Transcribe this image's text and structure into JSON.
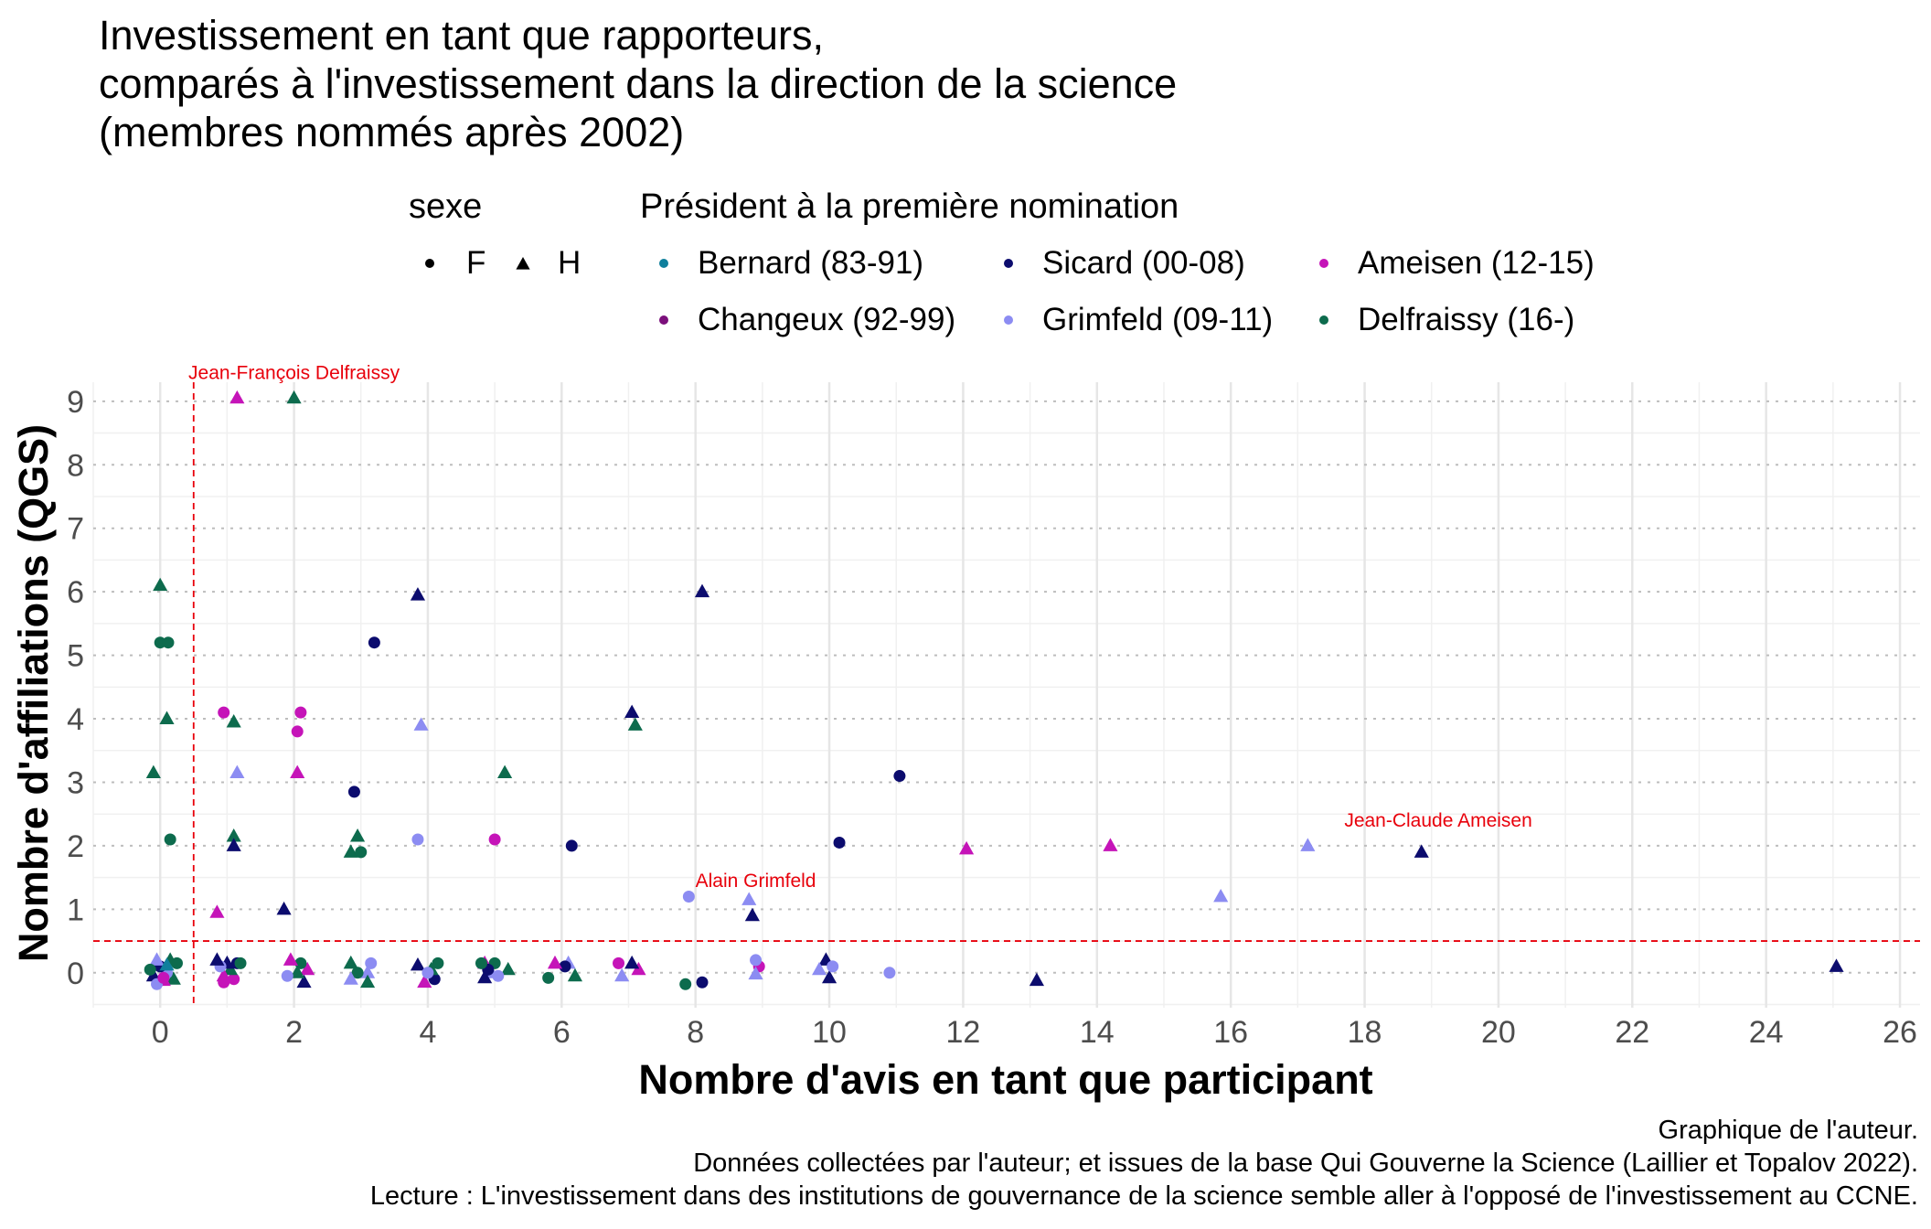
{
  "title_lines": [
    "Investissement en tant que rapporteurs,",
    "comparés à l'investissement dans la direction de la science",
    "(membres nommés après 2002)"
  ],
  "legend": {
    "shape_title": "sexe",
    "shape_items": [
      {
        "label": "F",
        "shape": "circle"
      },
      {
        "label": "H",
        "shape": "triangle"
      }
    ],
    "color_title": "Président à la première nomination",
    "color_items": [
      {
        "label": "Bernard (83-91)",
        "color": "#0f7f9c"
      },
      {
        "label": "Changeux (92-99)",
        "color": "#7b0f7b"
      },
      {
        "label": "Sicard (00-08)",
        "color": "#0c0c6e"
      },
      {
        "label": "Grimfeld (09-11)",
        "color": "#8c8cf2"
      },
      {
        "label": "Ameisen (12-15)",
        "color": "#c514b8"
      },
      {
        "label": "Delfraissy (16-)",
        "color": "#0d6b4d"
      }
    ]
  },
  "captions": [
    "Graphique de l'auteur.",
    "Données collectées par l'auteur; et issues de la base Qui Gouverne la Science (Laillier et Topalov 2022).",
    "Lecture : L'investissement dans des institutions de gouvernance de la science semble aller à l'opposé de l'investissement au CCNE."
  ],
  "chart_data": {
    "type": "scatter",
    "xlabel": "Nombre d'avis en tant que participant",
    "ylabel": "Nombre d'affiliations (QGS)",
    "xlim": [
      -1,
      26.3
    ],
    "ylim": [
      -0.55,
      9.3
    ],
    "x_ticks": [
      0,
      2,
      4,
      6,
      8,
      10,
      12,
      14,
      16,
      18,
      20,
      22,
      24,
      26
    ],
    "y_ticks": [
      0,
      1,
      2,
      3,
      4,
      5,
      6,
      7,
      8,
      9
    ],
    "grid": true,
    "reference_lines": {
      "vertical_x": 0.5,
      "horizontal_y": 0.5,
      "color": "#e8000b",
      "style": "dashed"
    },
    "annotations": [
      {
        "text": "Jean-François Delfraissy",
        "x": 2.0,
        "y": 9.35
      },
      {
        "text": "Alain Grimfeld",
        "x": 8.9,
        "y": 1.35
      },
      {
        "text": "Jean-Claude Ameisen",
        "x": 19.1,
        "y": 2.3
      }
    ],
    "points": [
      {
        "x": 2.0,
        "y": 9.05,
        "shape": "triangle",
        "group": "Delfraissy (16-)"
      },
      {
        "x": 1.15,
        "y": 9.05,
        "shape": "triangle",
        "group": "Ameisen (12-15)"
      },
      {
        "x": 0.0,
        "y": 6.1,
        "shape": "triangle",
        "group": "Delfraissy (16-)"
      },
      {
        "x": 0.0,
        "y": 5.2,
        "shape": "circle",
        "group": "Delfraissy (16-)"
      },
      {
        "x": 0.12,
        "y": 5.2,
        "shape": "circle",
        "group": "Delfraissy (16-)"
      },
      {
        "x": 0.1,
        "y": 4.0,
        "shape": "triangle",
        "group": "Delfraissy (16-)"
      },
      {
        "x": -0.1,
        "y": 3.15,
        "shape": "triangle",
        "group": "Delfraissy (16-)"
      },
      {
        "x": 0.15,
        "y": 2.1,
        "shape": "circle",
        "group": "Delfraissy (16-)"
      },
      {
        "x": 0.95,
        "y": 4.1,
        "shape": "circle",
        "group": "Ameisen (12-15)"
      },
      {
        "x": 1.1,
        "y": 3.95,
        "shape": "triangle",
        "group": "Delfraissy (16-)"
      },
      {
        "x": 1.15,
        "y": 3.15,
        "shape": "triangle",
        "group": "Grimfeld (09-11)"
      },
      {
        "x": 1.1,
        "y": 2.15,
        "shape": "triangle",
        "group": "Delfraissy (16-)"
      },
      {
        "x": 1.1,
        "y": 2.0,
        "shape": "triangle",
        "group": "Sicard (00-08)"
      },
      {
        "x": 0.85,
        "y": 0.95,
        "shape": "triangle",
        "group": "Ameisen (12-15)"
      },
      {
        "x": 2.1,
        "y": 4.1,
        "shape": "circle",
        "group": "Ameisen (12-15)"
      },
      {
        "x": 2.05,
        "y": 3.8,
        "shape": "circle",
        "group": "Ameisen (12-15)"
      },
      {
        "x": 2.05,
        "y": 3.15,
        "shape": "triangle",
        "group": "Ameisen (12-15)"
      },
      {
        "x": 1.85,
        "y": 1.0,
        "shape": "triangle",
        "group": "Sicard (00-08)"
      },
      {
        "x": 2.9,
        "y": 2.85,
        "shape": "circle",
        "group": "Sicard (00-08)"
      },
      {
        "x": 2.95,
        "y": 2.15,
        "shape": "triangle",
        "group": "Delfraissy (16-)"
      },
      {
        "x": 2.85,
        "y": 1.9,
        "shape": "triangle",
        "group": "Delfraissy (16-)"
      },
      {
        "x": 3.0,
        "y": 1.9,
        "shape": "circle",
        "group": "Delfraissy (16-)"
      },
      {
        "x": 3.2,
        "y": 5.2,
        "shape": "circle",
        "group": "Sicard (00-08)"
      },
      {
        "x": 3.85,
        "y": 5.95,
        "shape": "triangle",
        "group": "Sicard (00-08)"
      },
      {
        "x": 3.9,
        "y": 3.9,
        "shape": "triangle",
        "group": "Grimfeld (09-11)"
      },
      {
        "x": 3.85,
        "y": 2.1,
        "shape": "circle",
        "group": "Grimfeld (09-11)"
      },
      {
        "x": 5.0,
        "y": 2.1,
        "shape": "circle",
        "group": "Ameisen (12-15)"
      },
      {
        "x": 5.15,
        "y": 3.15,
        "shape": "triangle",
        "group": "Delfraissy (16-)"
      },
      {
        "x": 6.15,
        "y": 2.0,
        "shape": "circle",
        "group": "Sicard (00-08)"
      },
      {
        "x": 7.05,
        "y": 4.1,
        "shape": "triangle",
        "group": "Sicard (00-08)"
      },
      {
        "x": 7.1,
        "y": 3.9,
        "shape": "triangle",
        "group": "Delfraissy (16-)"
      },
      {
        "x": 8.1,
        "y": 6.0,
        "shape": "triangle",
        "group": "Sicard (00-08)"
      },
      {
        "x": 7.9,
        "y": 1.2,
        "shape": "circle",
        "group": "Grimfeld (09-11)"
      },
      {
        "x": 8.8,
        "y": 1.15,
        "shape": "triangle",
        "group": "Grimfeld (09-11)"
      },
      {
        "x": 8.85,
        "y": 0.9,
        "shape": "triangle",
        "group": "Sicard (00-08)"
      },
      {
        "x": 10.15,
        "y": 2.05,
        "shape": "circle",
        "group": "Sicard (00-08)"
      },
      {
        "x": 11.05,
        "y": 3.1,
        "shape": "circle",
        "group": "Sicard (00-08)"
      },
      {
        "x": 12.05,
        "y": 1.95,
        "shape": "triangle",
        "group": "Ameisen (12-15)"
      },
      {
        "x": 14.2,
        "y": 2.0,
        "shape": "triangle",
        "group": "Ameisen (12-15)"
      },
      {
        "x": 15.85,
        "y": 1.2,
        "shape": "triangle",
        "group": "Grimfeld (09-11)"
      },
      {
        "x": 17.15,
        "y": 2.0,
        "shape": "triangle",
        "group": "Grimfeld (09-11)"
      },
      {
        "x": 18.85,
        "y": 1.9,
        "shape": "triangle",
        "group": "Sicard (00-08)"
      },
      {
        "x": 25.05,
        "y": 0.1,
        "shape": "triangle",
        "group": "Sicard (00-08)"
      },
      {
        "x": 13.1,
        "y": -0.12,
        "shape": "triangle",
        "group": "Sicard (00-08)"
      },
      {
        "x": 10.9,
        "y": 0.0,
        "shape": "circle",
        "group": "Grimfeld (09-11)"
      },
      {
        "x": 9.95,
        "y": 0.2,
        "shape": "triangle",
        "group": "Sicard (00-08)"
      },
      {
        "x": 10.0,
        "y": -0.08,
        "shape": "triangle",
        "group": "Sicard (00-08)"
      },
      {
        "x": 10.05,
        "y": 0.1,
        "shape": "circle",
        "group": "Grimfeld (09-11)"
      },
      {
        "x": 9.85,
        "y": 0.05,
        "shape": "triangle",
        "group": "Grimfeld (09-11)"
      },
      {
        "x": 8.95,
        "y": 0.1,
        "shape": "circle",
        "group": "Ameisen (12-15)"
      },
      {
        "x": 8.9,
        "y": -0.02,
        "shape": "triangle",
        "group": "Grimfeld (09-11)"
      },
      {
        "x": 8.9,
        "y": 0.2,
        "shape": "circle",
        "group": "Grimfeld (09-11)"
      },
      {
        "x": 8.1,
        "y": -0.15,
        "shape": "circle",
        "group": "Sicard (00-08)"
      },
      {
        "x": 7.85,
        "y": -0.18,
        "shape": "circle",
        "group": "Delfraissy (16-)"
      },
      {
        "x": 7.15,
        "y": 0.05,
        "shape": "triangle",
        "group": "Ameisen (12-15)"
      },
      {
        "x": 7.05,
        "y": 0.15,
        "shape": "triangle",
        "group": "Sicard (00-08)"
      },
      {
        "x": 6.9,
        "y": -0.05,
        "shape": "triangle",
        "group": "Grimfeld (09-11)"
      },
      {
        "x": 6.85,
        "y": 0.15,
        "shape": "circle",
        "group": "Ameisen (12-15)"
      },
      {
        "x": 6.1,
        "y": 0.15,
        "shape": "triangle",
        "group": "Grimfeld (09-11)"
      },
      {
        "x": 6.2,
        "y": -0.05,
        "shape": "triangle",
        "group": "Delfraissy (16-)"
      },
      {
        "x": 6.05,
        "y": 0.1,
        "shape": "circle",
        "group": "Sicard (00-08)"
      },
      {
        "x": 5.9,
        "y": 0.15,
        "shape": "triangle",
        "group": "Ameisen (12-15)"
      },
      {
        "x": 5.8,
        "y": -0.08,
        "shape": "circle",
        "group": "Delfraissy (16-)"
      },
      {
        "x": 5.2,
        "y": 0.05,
        "shape": "triangle",
        "group": "Delfraissy (16-)"
      },
      {
        "x": 5.05,
        "y": -0.05,
        "shape": "circle",
        "group": "Grimfeld (09-11)"
      },
      {
        "x": 5.0,
        "y": 0.15,
        "shape": "circle",
        "group": "Delfraissy (16-)"
      },
      {
        "x": 4.95,
        "y": 0.0,
        "shape": "triangle",
        "group": "Grimfeld (09-11)"
      },
      {
        "x": 4.85,
        "y": 0.15,
        "shape": "triangle",
        "group": "Ameisen (12-15)"
      },
      {
        "x": 4.9,
        "y": 0.05,
        "shape": "circle",
        "group": "Sicard (00-08)"
      },
      {
        "x": 4.85,
        "y": -0.08,
        "shape": "triangle",
        "group": "Sicard (00-08)"
      },
      {
        "x": 4.8,
        "y": 0.15,
        "shape": "circle",
        "group": "Delfraissy (16-)"
      },
      {
        "x": 4.15,
        "y": 0.15,
        "shape": "circle",
        "group": "Delfraissy (16-)"
      },
      {
        "x": 4.1,
        "y": -0.1,
        "shape": "circle",
        "group": "Sicard (00-08)"
      },
      {
        "x": 4.05,
        "y": 0.05,
        "shape": "triangle",
        "group": "Delfraissy (16-)"
      },
      {
        "x": 3.95,
        "y": -0.15,
        "shape": "triangle",
        "group": "Ameisen (12-15)"
      },
      {
        "x": 3.85,
        "y": 0.12,
        "shape": "triangle",
        "group": "Sicard (00-08)"
      },
      {
        "x": 4.0,
        "y": 0.0,
        "shape": "circle",
        "group": "Grimfeld (09-11)"
      },
      {
        "x": 3.15,
        "y": 0.15,
        "shape": "circle",
        "group": "Grimfeld (09-11)"
      },
      {
        "x": 3.1,
        "y": 0.0,
        "shape": "triangle",
        "group": "Grimfeld (09-11)"
      },
      {
        "x": 3.1,
        "y": -0.15,
        "shape": "triangle",
        "group": "Delfraissy (16-)"
      },
      {
        "x": 2.85,
        "y": 0.15,
        "shape": "triangle",
        "group": "Delfraissy (16-)"
      },
      {
        "x": 2.95,
        "y": 0.0,
        "shape": "circle",
        "group": "Delfraissy (16-)"
      },
      {
        "x": 2.85,
        "y": -0.1,
        "shape": "triangle",
        "group": "Grimfeld (09-11)"
      },
      {
        "x": 2.2,
        "y": 0.05,
        "shape": "triangle",
        "group": "Ameisen (12-15)"
      },
      {
        "x": 2.15,
        "y": -0.15,
        "shape": "triangle",
        "group": "Sicard (00-08)"
      },
      {
        "x": 2.1,
        "y": 0.15,
        "shape": "circle",
        "group": "Delfraissy (16-)"
      },
      {
        "x": 2.05,
        "y": 0.0,
        "shape": "triangle",
        "group": "Delfraissy (16-)"
      },
      {
        "x": 1.95,
        "y": 0.2,
        "shape": "triangle",
        "group": "Ameisen (12-15)"
      },
      {
        "x": 1.9,
        "y": -0.05,
        "shape": "circle",
        "group": "Grimfeld (09-11)"
      },
      {
        "x": 1.15,
        "y": 0.15,
        "shape": "circle",
        "group": "Sicard (00-08)"
      },
      {
        "x": 1.1,
        "y": -0.1,
        "shape": "circle",
        "group": "Ameisen (12-15)"
      },
      {
        "x": 1.05,
        "y": 0.05,
        "shape": "triangle",
        "group": "Delfraissy (16-)"
      },
      {
        "x": 1.0,
        "y": 0.15,
        "shape": "triangle",
        "group": "Sicard (00-08)"
      },
      {
        "x": 0.95,
        "y": -0.05,
        "shape": "triangle",
        "group": "Ameisen (12-15)"
      },
      {
        "x": 0.9,
        "y": 0.1,
        "shape": "circle",
        "group": "Grimfeld (09-11)"
      },
      {
        "x": 0.95,
        "y": -0.15,
        "shape": "circle",
        "group": "Ameisen (12-15)"
      },
      {
        "x": 0.85,
        "y": 0.2,
        "shape": "triangle",
        "group": "Sicard (00-08)"
      },
      {
        "x": 1.2,
        "y": 0.15,
        "shape": "circle",
        "group": "Delfraissy (16-)"
      },
      {
        "x": 0.25,
        "y": 0.15,
        "shape": "circle",
        "group": "Delfraissy (16-)"
      },
      {
        "x": 0.2,
        "y": -0.1,
        "shape": "triangle",
        "group": "Delfraissy (16-)"
      },
      {
        "x": 0.15,
        "y": 0.2,
        "shape": "triangle",
        "group": "Delfraissy (16-)"
      },
      {
        "x": 0.1,
        "y": 0.0,
        "shape": "circle",
        "group": "Grimfeld (09-11)"
      },
      {
        "x": 0.05,
        "y": -0.12,
        "shape": "triangle",
        "group": "Ameisen (12-15)"
      },
      {
        "x": 0.0,
        "y": 0.1,
        "shape": "circle",
        "group": "Sicard (00-08)"
      },
      {
        "x": -0.05,
        "y": 0.2,
        "shape": "triangle",
        "group": "Grimfeld (09-11)"
      },
      {
        "x": -0.1,
        "y": -0.05,
        "shape": "triangle",
        "group": "Sicard (00-08)"
      },
      {
        "x": -0.15,
        "y": 0.05,
        "shape": "circle",
        "group": "Delfraissy (16-)"
      },
      {
        "x": -0.05,
        "y": -0.18,
        "shape": "circle",
        "group": "Grimfeld (09-11)"
      },
      {
        "x": 0.05,
        "y": -0.08,
        "shape": "circle",
        "group": "Ameisen (12-15)"
      },
      {
        "x": 0.1,
        "y": 0.12,
        "shape": "triangle",
        "group": "Bernard (83-91)"
      }
    ]
  }
}
